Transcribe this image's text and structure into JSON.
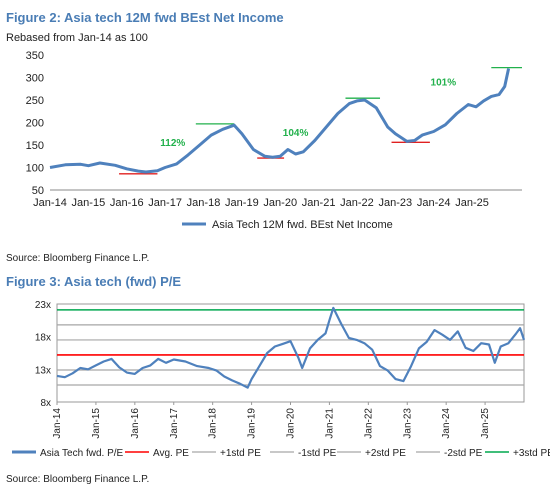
{
  "figure2": {
    "title": "Figure 2: Asia tech 12M fwd BEst Net Income",
    "subtitle": "Rebased from Jan-14 as 100",
    "source": "Source: Bloomberg Finance L.P."
  },
  "figure3": {
    "title": "Figure 3: Asia tech (fwd) P/E",
    "source": "Source: Bloomberg Finance L.P."
  },
  "colors": {
    "series": "#4f81bd",
    "title": "#4a7db5",
    "annotation": "#22b14c",
    "trough": "#e02020",
    "avg": "#ff0000",
    "std_grey": "#a6a6a6",
    "std3": "#00a84f",
    "grid": "#d9d9d9"
  },
  "chart_data": [
    {
      "type": "line",
      "categories": [
        "Jan-14",
        "Jan-15",
        "Jan-16",
        "Jan-17",
        "Jan-18",
        "Jan-19",
        "Jan-20",
        "Jan-21",
        "Jan-22",
        "Jan-23",
        "Jan-24",
        "Jan-25"
      ],
      "ylim": [
        50,
        350
      ],
      "yticks": [
        50,
        100,
        150,
        200,
        250,
        300,
        350
      ],
      "grid": false,
      "legend_position": "bottom",
      "series": [
        {
          "name": "Asia Tech 12M fwd. BEst Net Income",
          "points": [
            [
              2014.0,
              100
            ],
            [
              2014.4,
              106
            ],
            [
              2014.8,
              107
            ],
            [
              2015.0,
              104
            ],
            [
              2015.3,
              110
            ],
            [
              2015.7,
              105
            ],
            [
              2016.0,
              97
            ],
            [
              2016.3,
              92
            ],
            [
              2016.5,
              90
            ],
            [
              2016.8,
              93
            ],
            [
              2017.0,
              100
            ],
            [
              2017.3,
              108
            ],
            [
              2017.6,
              128
            ],
            [
              2017.9,
              150
            ],
            [
              2018.2,
              172
            ],
            [
              2018.5,
              185
            ],
            [
              2018.8,
              194
            ],
            [
              2019.0,
              175
            ],
            [
              2019.3,
              140
            ],
            [
              2019.6,
              125
            ],
            [
              2019.8,
              123
            ],
            [
              2020.0,
              125
            ],
            [
              2020.2,
              140
            ],
            [
              2020.4,
              130
            ],
            [
              2020.6,
              135
            ],
            [
              2020.9,
              160
            ],
            [
              2021.2,
              190
            ],
            [
              2021.5,
              220
            ],
            [
              2021.8,
              242
            ],
            [
              2022.0,
              248
            ],
            [
              2022.2,
              250
            ],
            [
              2022.5,
              233
            ],
            [
              2022.8,
              190
            ],
            [
              2023.0,
              175
            ],
            [
              2023.3,
              158
            ],
            [
              2023.5,
              160
            ],
            [
              2023.7,
              172
            ],
            [
              2024.0,
              180
            ],
            [
              2024.3,
              195
            ],
            [
              2024.6,
              220
            ],
            [
              2024.9,
              240
            ],
            [
              2025.1,
              235
            ],
            [
              2025.3,
              248
            ],
            [
              2025.5,
              258
            ],
            [
              2025.7,
              262
            ],
            [
              2025.85,
              280
            ],
            [
              2025.95,
              320
            ]
          ]
        }
      ],
      "annotations": [
        {
          "text": "112%",
          "x": 2017.2,
          "y": 148
        },
        {
          "text": "104%",
          "x": 2020.4,
          "y": 170
        },
        {
          "text": "101%",
          "x": 2024.25,
          "y": 282
        }
      ],
      "reference_lines": [
        {
          "kind": "trough",
          "x0": 2015.8,
          "x1": 2016.8,
          "y": 86
        },
        {
          "kind": "peak",
          "x0": 2017.8,
          "x1": 2018.8,
          "y": 197
        },
        {
          "kind": "trough",
          "x0": 2019.4,
          "x1": 2020.1,
          "y": 121
        },
        {
          "kind": "peak",
          "x0": 2021.7,
          "x1": 2022.6,
          "y": 254
        },
        {
          "kind": "trough",
          "x0": 2022.9,
          "x1": 2023.9,
          "y": 156
        },
        {
          "kind": "peak",
          "x0": 2025.5,
          "x1": 2026.3,
          "y": 322
        }
      ]
    },
    {
      "type": "line",
      "categories": [
        "Jan-14",
        "Jan-15",
        "Jan-16",
        "Jan-17",
        "Jan-18",
        "Jan-19",
        "Jan-20",
        "Jan-21",
        "Jan-22",
        "Jan-23",
        "Jan-24",
        "Jan-25"
      ],
      "ylim": [
        8,
        23
      ],
      "yticks": [
        8,
        13,
        18,
        23
      ],
      "ytick_labels": [
        "8x",
        "13x",
        "18x",
        "23x"
      ],
      "grid": false,
      "legend_position": "bottom",
      "series": [
        {
          "name": "Asia Tech fwd. P/E",
          "points": [
            [
              2014.0,
              12.0
            ],
            [
              2014.2,
              11.8
            ],
            [
              2014.4,
              12.4
            ],
            [
              2014.6,
              13.2
            ],
            [
              2014.8,
              13.0
            ],
            [
              2015.0,
              13.6
            ],
            [
              2015.2,
              14.2
            ],
            [
              2015.4,
              14.6
            ],
            [
              2015.6,
              13.3
            ],
            [
              2015.8,
              12.5
            ],
            [
              2016.0,
              12.3
            ],
            [
              2016.2,
              13.2
            ],
            [
              2016.4,
              13.6
            ],
            [
              2016.6,
              14.6
            ],
            [
              2016.8,
              14.0
            ],
            [
              2017.0,
              14.5
            ],
            [
              2017.3,
              14.2
            ],
            [
              2017.6,
              13.5
            ],
            [
              2017.9,
              13.2
            ],
            [
              2018.1,
              12.8
            ],
            [
              2018.3,
              11.9
            ],
            [
              2018.5,
              11.3
            ],
            [
              2018.7,
              10.8
            ],
            [
              2018.9,
              10.2
            ],
            [
              2019.0,
              11.5
            ],
            [
              2019.2,
              13.5
            ],
            [
              2019.4,
              15.5
            ],
            [
              2019.6,
              16.5
            ],
            [
              2019.8,
              16.9
            ],
            [
              2020.0,
              17.3
            ],
            [
              2020.2,
              14.8
            ],
            [
              2020.3,
              13.2
            ],
            [
              2020.5,
              16.2
            ],
            [
              2020.7,
              17.5
            ],
            [
              2020.9,
              18.5
            ],
            [
              2021.0,
              20.5
            ],
            [
              2021.1,
              22.4
            ],
            [
              2021.3,
              20.0
            ],
            [
              2021.5,
              17.8
            ],
            [
              2021.7,
              17.5
            ],
            [
              2021.9,
              17.0
            ],
            [
              2022.1,
              16.0
            ],
            [
              2022.3,
              13.5
            ],
            [
              2022.5,
              12.8
            ],
            [
              2022.7,
              11.5
            ],
            [
              2022.9,
              11.2
            ],
            [
              2023.1,
              13.5
            ],
            [
              2023.3,
              16.2
            ],
            [
              2023.5,
              17.2
            ],
            [
              2023.7,
              19.0
            ],
            [
              2023.9,
              18.3
            ],
            [
              2024.1,
              17.5
            ],
            [
              2024.3,
              18.8
            ],
            [
              2024.5,
              16.3
            ],
            [
              2024.7,
              15.8
            ],
            [
              2024.9,
              17.0
            ],
            [
              2025.1,
              16.8
            ],
            [
              2025.25,
              14.0
            ],
            [
              2025.4,
              16.5
            ],
            [
              2025.6,
              17.0
            ],
            [
              2025.8,
              18.5
            ],
            [
              2025.9,
              19.3
            ],
            [
              2026.0,
              17.5
            ]
          ]
        },
        {
          "name": "Avg. PE",
          "value": 15.2
        },
        {
          "name": "+1std PE",
          "value": 17.5
        },
        {
          "name": "-1std PE",
          "value": 12.9
        },
        {
          "name": "+2std PE",
          "value": 19.8
        },
        {
          "name": "-2std PE",
          "value": 10.6
        },
        {
          "name": "+3std PE",
          "value": 22.1
        }
      ]
    }
  ]
}
